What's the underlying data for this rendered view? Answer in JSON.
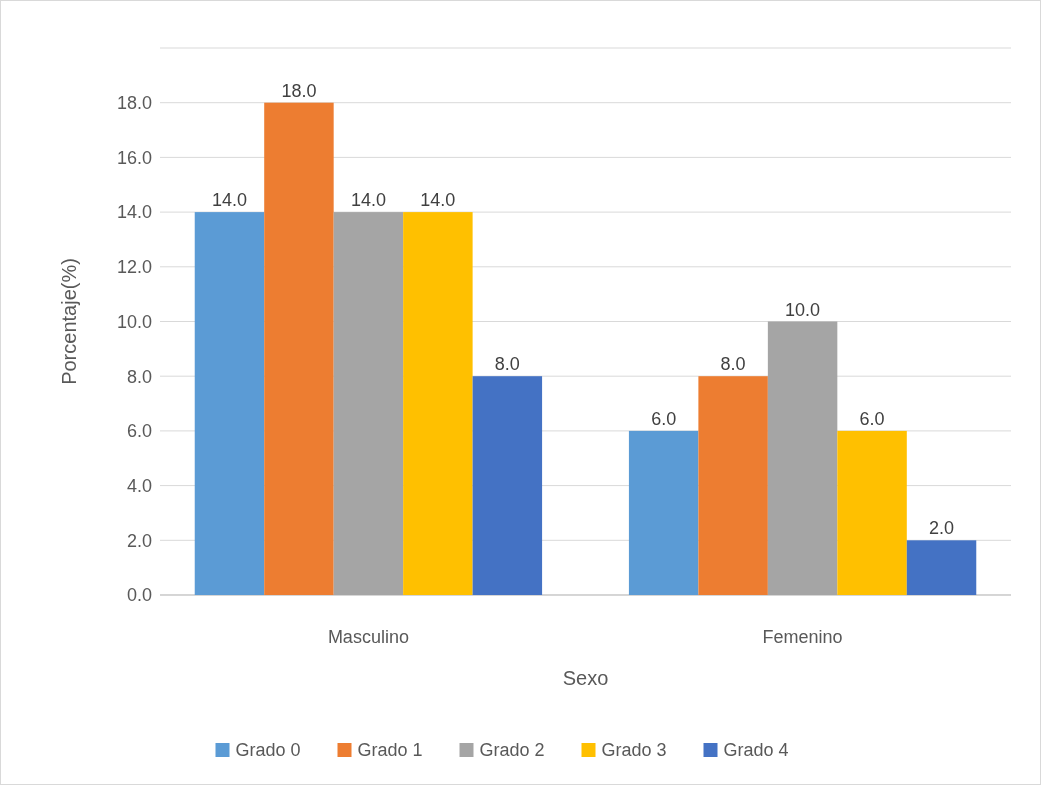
{
  "chart_data": {
    "type": "bar",
    "xlabel": "Sexo",
    "ylabel": "Porcentaje(%)",
    "categories": [
      "Masculino",
      "Femenino"
    ],
    "series": [
      {
        "name": "Grado 0",
        "color": "#5b9bd5",
        "values": [
          14,
          6
        ],
        "value_labels": [
          "14.0",
          "6.0"
        ]
      },
      {
        "name": "Grado 1",
        "color": "#ed7d31",
        "values": [
          18,
          8
        ],
        "value_labels": [
          "18.0",
          "8.0"
        ]
      },
      {
        "name": "Grado 2",
        "color": "#a5a5a5",
        "values": [
          14,
          10
        ],
        "value_labels": [
          "14.0",
          "10.0"
        ]
      },
      {
        "name": "Grado 3",
        "color": "#ffc000",
        "values": [
          14,
          6
        ],
        "value_labels": [
          "14.0",
          "6.0"
        ]
      },
      {
        "name": "Grado 4",
        "color": "#4472c4",
        "values": [
          8,
          2
        ],
        "value_labels": [
          "8.0",
          "2.0"
        ]
      }
    ],
    "ylim": [
      0,
      20
    ],
    "yticks": [
      {
        "value": 0,
        "label": "0.0"
      },
      {
        "value": 2,
        "label": "2.0"
      },
      {
        "value": 4,
        "label": "4.0"
      },
      {
        "value": 6,
        "label": "6.0"
      },
      {
        "value": 8,
        "label": "8.0"
      },
      {
        "value": 10,
        "label": "10.0"
      },
      {
        "value": 12,
        "label": "12.0"
      },
      {
        "value": 14,
        "label": "14.0"
      },
      {
        "value": 16,
        "label": "16.0"
      },
      {
        "value": 18,
        "label": "18.0"
      },
      {
        "value": 20,
        "label": null
      }
    ],
    "grid": "y",
    "legend": "bottom"
  }
}
